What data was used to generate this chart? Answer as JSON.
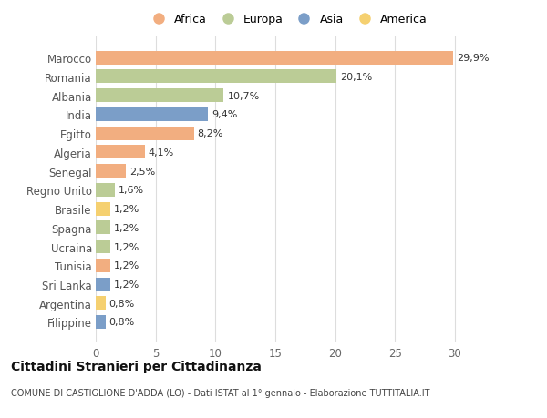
{
  "countries": [
    "Filippine",
    "Argentina",
    "Sri Lanka",
    "Tunisia",
    "Ucraina",
    "Spagna",
    "Brasile",
    "Regno Unito",
    "Senegal",
    "Algeria",
    "Egitto",
    "India",
    "Albania",
    "Romania",
    "Marocco"
  ],
  "values": [
    0.8,
    0.8,
    1.2,
    1.2,
    1.2,
    1.2,
    1.2,
    1.6,
    2.5,
    4.1,
    8.2,
    9.4,
    10.7,
    20.1,
    29.9
  ],
  "labels": [
    "0,8%",
    "0,8%",
    "1,2%",
    "1,2%",
    "1,2%",
    "1,2%",
    "1,2%",
    "1,6%",
    "2,5%",
    "4,1%",
    "8,2%",
    "9,4%",
    "10,7%",
    "20,1%",
    "29,9%"
  ],
  "continents": [
    "Asia",
    "America",
    "Asia",
    "Africa",
    "Europa",
    "Europa",
    "America",
    "Europa",
    "Africa",
    "Africa",
    "Africa",
    "Asia",
    "Europa",
    "Europa",
    "Africa"
  ],
  "colors": {
    "Africa": "#F2AE80",
    "Europa": "#BBCC96",
    "Asia": "#7B9EC8",
    "America": "#F5D070"
  },
  "legend_order": [
    "Africa",
    "Europa",
    "Asia",
    "America"
  ],
  "xlim": [
    0,
    32
  ],
  "xticks": [
    0,
    5,
    10,
    15,
    20,
    25,
    30
  ],
  "title_main": "Cittadini Stranieri per Cittadinanza",
  "title_sub": "COMUNE DI CASTIGLIONE D'ADDA (LO) - Dati ISTAT al 1° gennaio - Elaborazione TUTTITALIA.IT",
  "bg_color": "#FFFFFF",
  "grid_color": "#DDDDDD"
}
